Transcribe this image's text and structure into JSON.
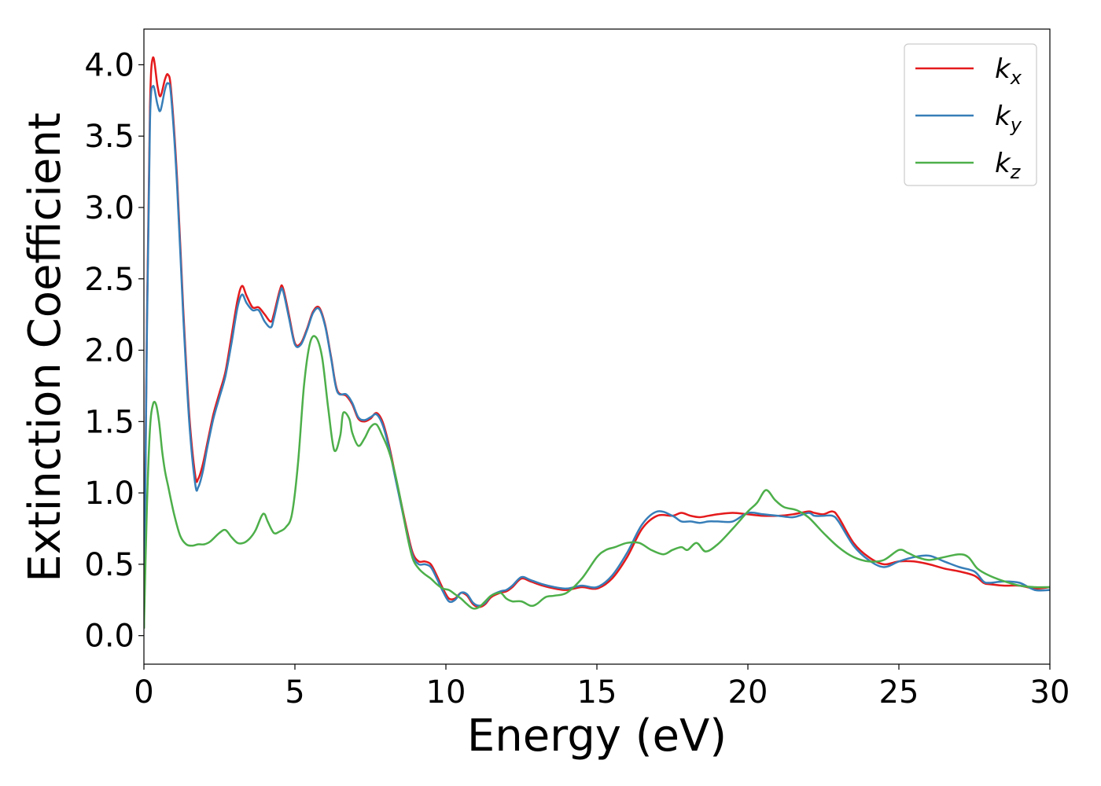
{
  "chart_data": {
    "type": "line",
    "xlabel": "Energy (eV)",
    "ylabel": "Extinction Coefficient",
    "xlim": [
      0,
      30
    ],
    "ylim": [
      -0.2,
      4.25
    ],
    "xticks": [
      0,
      5,
      10,
      15,
      20,
      25,
      30
    ],
    "yticks": [
      0.0,
      0.5,
      1.0,
      1.5,
      2.0,
      2.5,
      3.0,
      3.5,
      4.0
    ],
    "xtick_labels": [
      "0",
      "5",
      "10",
      "15",
      "20",
      "25",
      "30"
    ],
    "ytick_labels": [
      "0.0",
      "0.5",
      "1.0",
      "1.5",
      "2.0",
      "2.5",
      "3.0",
      "3.5",
      "4.0"
    ],
    "grid": false,
    "legend_position": "top-right",
    "series": [
      {
        "name": "k",
        "subscript": "x",
        "color": "#e41a1c",
        "x": [
          0,
          0.1,
          0.2,
          0.3,
          0.45,
          0.55,
          0.7,
          0.8,
          0.9,
          1.1,
          1.3,
          1.5,
          1.7,
          1.8,
          1.95,
          2.1,
          2.3,
          2.5,
          2.7,
          2.9,
          3.1,
          3.25,
          3.4,
          3.6,
          3.8,
          4.0,
          4.2,
          4.3,
          4.5,
          4.6,
          4.8,
          5.0,
          5.2,
          5.4,
          5.6,
          5.8,
          6.0,
          6.2,
          6.4,
          6.7,
          6.9,
          7.1,
          7.3,
          7.5,
          7.7,
          7.9,
          8.1,
          8.3,
          8.5,
          8.7,
          8.9,
          9.1,
          9.3,
          9.5,
          9.7,
          9.9,
          10.1,
          10.3,
          10.5,
          10.7,
          10.9,
          11.1,
          11.3,
          11.5,
          11.8,
          12.0,
          12.2,
          12.5,
          12.8,
          13.2,
          13.6,
          14.0,
          14.5,
          15.0,
          15.5,
          16.0,
          16.5,
          17.0,
          17.5,
          17.8,
          18.1,
          18.4,
          18.7,
          19.0,
          19.5,
          20.0,
          20.5,
          21.0,
          21.5,
          22.0,
          22.2,
          22.5,
          22.8,
          23.0,
          23.5,
          24.0,
          24.5,
          25.0,
          25.5,
          26.0,
          26.5,
          27.0,
          27.5,
          27.8,
          28.0,
          28.5,
          29.0,
          29.5,
          30.0
        ],
        "y": [
          0.05,
          2.2,
          3.7,
          4.05,
          3.85,
          3.78,
          3.9,
          3.93,
          3.82,
          3.2,
          2.3,
          1.55,
          1.12,
          1.1,
          1.2,
          1.35,
          1.55,
          1.7,
          1.85,
          2.1,
          2.35,
          2.45,
          2.38,
          2.3,
          2.3,
          2.25,
          2.2,
          2.25,
          2.42,
          2.44,
          2.25,
          2.05,
          2.05,
          2.15,
          2.27,
          2.3,
          2.18,
          1.95,
          1.72,
          1.68,
          1.62,
          1.52,
          1.5,
          1.52,
          1.56,
          1.5,
          1.35,
          1.15,
          0.95,
          0.75,
          0.58,
          0.52,
          0.52,
          0.5,
          0.42,
          0.33,
          0.26,
          0.26,
          0.3,
          0.28,
          0.22,
          0.2,
          0.22,
          0.27,
          0.3,
          0.31,
          0.34,
          0.4,
          0.38,
          0.35,
          0.33,
          0.32,
          0.34,
          0.33,
          0.4,
          0.55,
          0.75,
          0.84,
          0.84,
          0.86,
          0.84,
          0.83,
          0.84,
          0.85,
          0.86,
          0.85,
          0.84,
          0.84,
          0.85,
          0.87,
          0.86,
          0.85,
          0.87,
          0.83,
          0.65,
          0.55,
          0.5,
          0.52,
          0.52,
          0.5,
          0.47,
          0.45,
          0.42,
          0.37,
          0.36,
          0.35,
          0.35,
          0.33,
          0.34
        ]
      },
      {
        "name": "k",
        "subscript": "y",
        "color": "#377eb8",
        "x": [
          0,
          0.1,
          0.2,
          0.3,
          0.45,
          0.55,
          0.7,
          0.8,
          0.9,
          1.1,
          1.3,
          1.5,
          1.7,
          1.8,
          1.95,
          2.1,
          2.3,
          2.5,
          2.7,
          2.9,
          3.1,
          3.25,
          3.4,
          3.6,
          3.8,
          4.0,
          4.2,
          4.3,
          4.5,
          4.6,
          4.8,
          5.0,
          5.2,
          5.4,
          5.6,
          5.8,
          6.0,
          6.2,
          6.4,
          6.7,
          6.9,
          7.1,
          7.3,
          7.5,
          7.7,
          7.9,
          8.1,
          8.3,
          8.5,
          8.7,
          8.9,
          9.1,
          9.3,
          9.5,
          9.7,
          9.9,
          10.1,
          10.3,
          10.5,
          10.7,
          10.9,
          11.1,
          11.3,
          11.5,
          11.8,
          12.0,
          12.2,
          12.5,
          12.8,
          13.2,
          13.6,
          14.0,
          14.5,
          15.0,
          15.5,
          16.0,
          16.5,
          17.0,
          17.5,
          17.8,
          18.1,
          18.4,
          18.7,
          19.0,
          19.5,
          20.0,
          20.5,
          21.0,
          21.5,
          22.0,
          22.2,
          22.5,
          22.8,
          23.0,
          23.5,
          24.0,
          24.5,
          25.0,
          25.5,
          26.0,
          26.5,
          27.0,
          27.5,
          27.8,
          28.0,
          28.5,
          29.0,
          29.5,
          30.0
        ],
        "y": [
          0.05,
          2.1,
          3.6,
          3.85,
          3.72,
          3.68,
          3.83,
          3.87,
          3.78,
          3.15,
          2.25,
          1.5,
          1.06,
          1.04,
          1.15,
          1.32,
          1.52,
          1.67,
          1.82,
          2.05,
          2.3,
          2.39,
          2.33,
          2.28,
          2.28,
          2.2,
          2.16,
          2.22,
          2.4,
          2.42,
          2.23,
          2.04,
          2.04,
          2.14,
          2.26,
          2.29,
          2.17,
          1.94,
          1.71,
          1.69,
          1.63,
          1.53,
          1.51,
          1.53,
          1.55,
          1.48,
          1.33,
          1.13,
          0.93,
          0.73,
          0.56,
          0.5,
          0.5,
          0.48,
          0.4,
          0.31,
          0.24,
          0.25,
          0.3,
          0.29,
          0.23,
          0.21,
          0.23,
          0.28,
          0.31,
          0.32,
          0.35,
          0.41,
          0.39,
          0.36,
          0.34,
          0.33,
          0.35,
          0.34,
          0.42,
          0.58,
          0.78,
          0.87,
          0.84,
          0.8,
          0.8,
          0.79,
          0.8,
          0.8,
          0.8,
          0.86,
          0.85,
          0.84,
          0.83,
          0.86,
          0.84,
          0.84,
          0.84,
          0.8,
          0.63,
          0.53,
          0.48,
          0.52,
          0.55,
          0.56,
          0.52,
          0.48,
          0.45,
          0.38,
          0.37,
          0.38,
          0.37,
          0.32,
          0.32
        ]
      },
      {
        "name": "k",
        "subscript": "z",
        "color": "#4daf4a",
        "x": [
          0,
          0.1,
          0.2,
          0.3,
          0.4,
          0.5,
          0.6,
          0.7,
          0.8,
          1.0,
          1.2,
          1.4,
          1.6,
          1.8,
          2.0,
          2.2,
          2.5,
          2.7,
          2.9,
          3.1,
          3.3,
          3.5,
          3.7,
          3.9,
          4.0,
          4.1,
          4.3,
          4.5,
          4.7,
          4.9,
          5.1,
          5.3,
          5.5,
          5.7,
          5.9,
          6.1,
          6.3,
          6.5,
          6.6,
          6.8,
          6.9,
          7.1,
          7.3,
          7.5,
          7.7,
          7.9,
          8.1,
          8.3,
          8.5,
          8.7,
          8.9,
          9.1,
          9.3,
          9.5,
          9.7,
          9.9,
          10.1,
          10.3,
          10.5,
          10.7,
          10.9,
          11.1,
          11.3,
          11.5,
          11.8,
          12.0,
          12.2,
          12.5,
          12.8,
          13.0,
          13.3,
          13.6,
          14.0,
          14.5,
          15.0,
          15.3,
          15.6,
          16.0,
          16.4,
          16.8,
          17.2,
          17.5,
          17.8,
          18.0,
          18.3,
          18.6,
          19.0,
          19.5,
          20.0,
          20.3,
          20.6,
          20.9,
          21.2,
          21.6,
          22.0,
          22.5,
          23.0,
          23.5,
          24.0,
          24.5,
          25.0,
          25.3,
          25.6,
          26.0,
          26.5,
          27.0,
          27.3,
          27.6,
          28.0,
          28.5,
          29.0,
          29.5,
          30.0
        ],
        "y": [
          0.05,
          0.9,
          1.45,
          1.62,
          1.62,
          1.5,
          1.3,
          1.15,
          1.05,
          0.85,
          0.7,
          0.64,
          0.63,
          0.64,
          0.64,
          0.66,
          0.72,
          0.74,
          0.69,
          0.65,
          0.65,
          0.68,
          0.74,
          0.84,
          0.85,
          0.8,
          0.72,
          0.73,
          0.76,
          0.85,
          1.2,
          1.75,
          2.05,
          2.09,
          1.95,
          1.6,
          1.3,
          1.4,
          1.56,
          1.52,
          1.42,
          1.33,
          1.38,
          1.46,
          1.48,
          1.4,
          1.3,
          1.15,
          0.95,
          0.72,
          0.54,
          0.47,
          0.43,
          0.4,
          0.36,
          0.33,
          0.32,
          0.29,
          0.26,
          0.22,
          0.19,
          0.2,
          0.24,
          0.28,
          0.3,
          0.26,
          0.24,
          0.24,
          0.21,
          0.22,
          0.27,
          0.28,
          0.3,
          0.4,
          0.55,
          0.6,
          0.62,
          0.65,
          0.65,
          0.6,
          0.57,
          0.6,
          0.62,
          0.6,
          0.65,
          0.59,
          0.64,
          0.75,
          0.87,
          0.93,
          1.02,
          0.95,
          0.9,
          0.88,
          0.83,
          0.72,
          0.62,
          0.55,
          0.52,
          0.53,
          0.6,
          0.58,
          0.55,
          0.53,
          0.55,
          0.57,
          0.55,
          0.47,
          0.42,
          0.38,
          0.35,
          0.34,
          0.34
        ]
      }
    ]
  }
}
